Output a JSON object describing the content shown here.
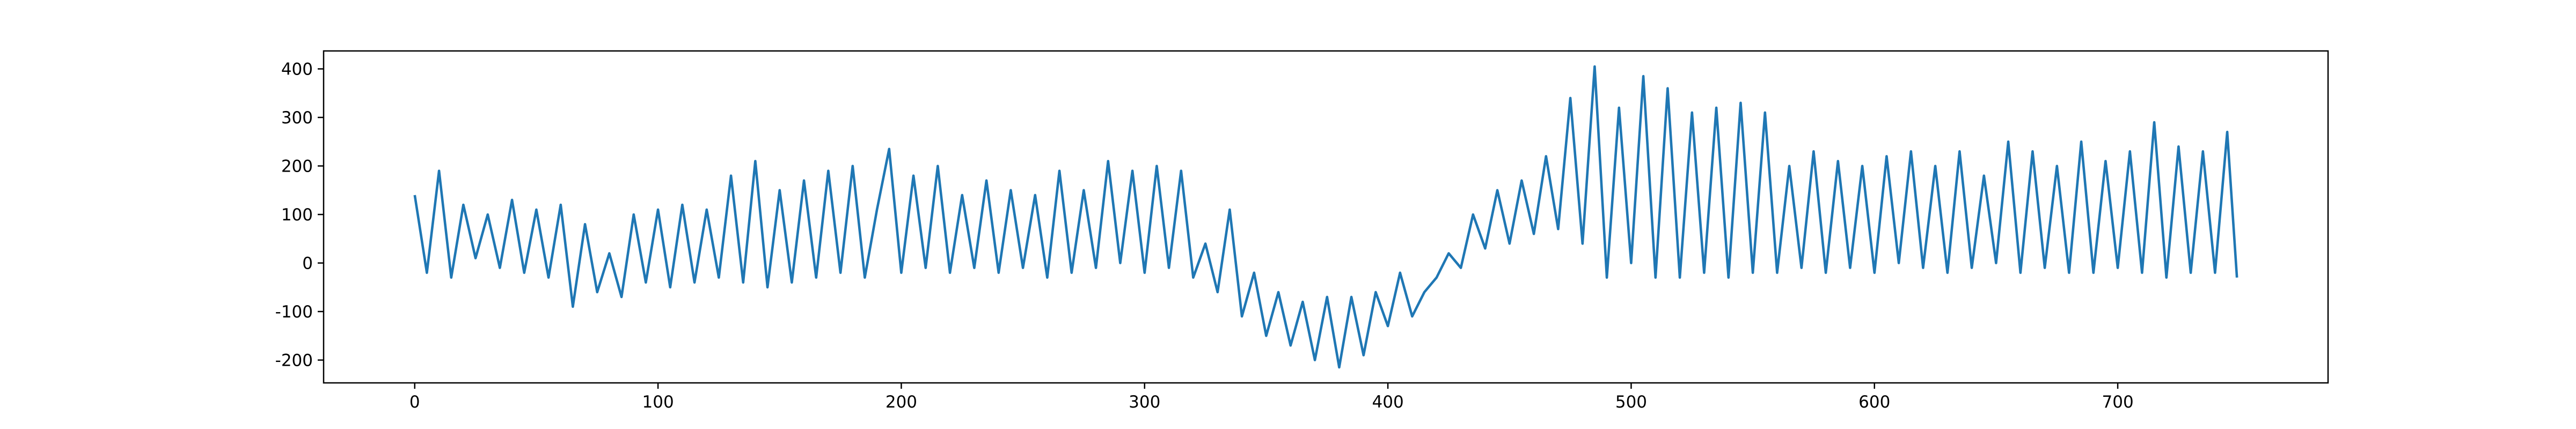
{
  "chart_data": {
    "type": "line",
    "x": [
      0,
      5,
      10,
      15,
      20,
      25,
      30,
      35,
      40,
      45,
      50,
      55,
      60,
      65,
      70,
      75,
      80,
      85,
      90,
      95,
      100,
      105,
      110,
      115,
      120,
      125,
      130,
      135,
      140,
      145,
      150,
      155,
      160,
      165,
      170,
      175,
      180,
      185,
      190,
      195,
      200,
      205,
      210,
      215,
      220,
      225,
      230,
      235,
      240,
      245,
      250,
      255,
      260,
      265,
      270,
      275,
      280,
      285,
      290,
      295,
      300,
      305,
      310,
      315,
      320,
      325,
      330,
      335,
      340,
      345,
      350,
      355,
      360,
      365,
      370,
      375,
      380,
      385,
      390,
      395,
      400,
      405,
      410,
      415,
      420,
      425,
      430,
      435,
      440,
      445,
      450,
      455,
      460,
      465,
      470,
      475,
      480,
      485,
      490,
      495,
      500,
      505,
      510,
      515,
      520,
      525,
      530,
      535,
      540,
      545,
      550,
      555,
      560,
      565,
      570,
      575,
      580,
      585,
      590,
      595,
      600,
      605,
      610,
      615,
      620,
      625,
      630,
      635,
      640,
      645,
      650,
      655,
      660,
      665,
      670,
      675,
      680,
      685,
      690,
      695,
      700,
      705,
      710,
      715,
      720,
      725,
      730,
      735,
      740,
      745,
      749
    ],
    "values": [
      140,
      -20,
      190,
      -30,
      120,
      10,
      100,
      -10,
      130,
      -20,
      110,
      -30,
      120,
      -90,
      80,
      -60,
      20,
      -70,
      100,
      -40,
      110,
      -50,
      120,
      -40,
      110,
      -30,
      180,
      -40,
      210,
      -50,
      150,
      -40,
      170,
      -30,
      190,
      -20,
      200,
      -30,
      110,
      235,
      -20,
      180,
      -10,
      200,
      -20,
      140,
      -10,
      170,
      -20,
      150,
      -10,
      140,
      -30,
      190,
      -20,
      150,
      -10,
      210,
      0,
      190,
      -20,
      200,
      -10,
      190,
      -30,
      40,
      -60,
      110,
      -110,
      -20,
      -150,
      -60,
      -170,
      -80,
      -200,
      -70,
      -215,
      -70,
      -190,
      -60,
      -130,
      -20,
      -110,
      -60,
      -30,
      20,
      -10,
      100,
      30,
      150,
      40,
      170,
      60,
      220,
      70,
      340,
      40,
      405,
      -30,
      320,
      0,
      385,
      -30,
      360,
      -30,
      310,
      -20,
      320,
      -30,
      330,
      -20,
      310,
      -20,
      200,
      -10,
      230,
      -20,
      210,
      -10,
      200,
      -20,
      220,
      0,
      230,
      -10,
      200,
      -20,
      230,
      -10,
      180,
      0,
      250,
      -20,
      230,
      -10,
      200,
      -20,
      250,
      -20,
      210,
      -10,
      230,
      -20,
      290,
      -30,
      240,
      -20,
      230,
      -20,
      270,
      -30
    ],
    "color": "#1f77b4",
    "xlim": [
      -37.45,
      786.45
    ],
    "xticks": [
      0,
      100,
      200,
      300,
      400,
      500,
      600,
      700
    ],
    "ylim": [
      -247,
      437
    ],
    "yticks": [
      -200,
      -100,
      0,
      100,
      200,
      300,
      400
    ]
  }
}
